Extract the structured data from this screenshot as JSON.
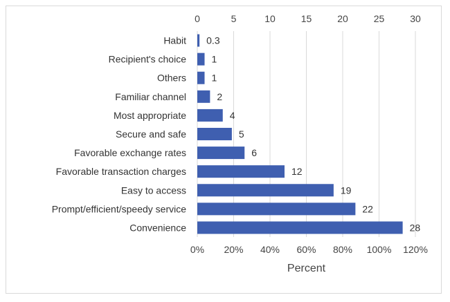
{
  "chart_data": {
    "type": "bar",
    "orientation": "horizontal",
    "categories": [
      "Habit",
      "Recipient's choice",
      "Others",
      "Familiar channel",
      "Most appropriate",
      "Secure and safe",
      "Favorable exchange rates",
      "Favorable transaction charges",
      "Easy to access",
      "Prompt/efficient/speedy service",
      "Convenience"
    ],
    "values": [
      0.3,
      1,
      1,
      2,
      4,
      5,
      6,
      12,
      19,
      22,
      28
    ],
    "value_labels": [
      "0.3",
      "1",
      "1",
      "2",
      "4",
      "5",
      "6",
      "12",
      "19",
      "22",
      "28"
    ],
    "bar_fractions": [
      0.012,
      0.04,
      0.04,
      0.07,
      0.14,
      0.19,
      0.26,
      0.48,
      0.75,
      0.87,
      1.13
    ],
    "top_axis": {
      "range": [
        0,
        30
      ],
      "ticks": [
        "0",
        "5",
        "10",
        "15",
        "20",
        "25",
        "30"
      ]
    },
    "bottom_axis": {
      "range": [
        0,
        1.2
      ],
      "ticks": [
        "0%",
        "20%",
        "40%",
        "60%",
        "80%",
        "100%",
        "120%"
      ]
    },
    "xlabel": "Percent",
    "ylabel": "",
    "title": "",
    "grid": true,
    "legend": false,
    "bar_color": "#3f5fb0"
  }
}
